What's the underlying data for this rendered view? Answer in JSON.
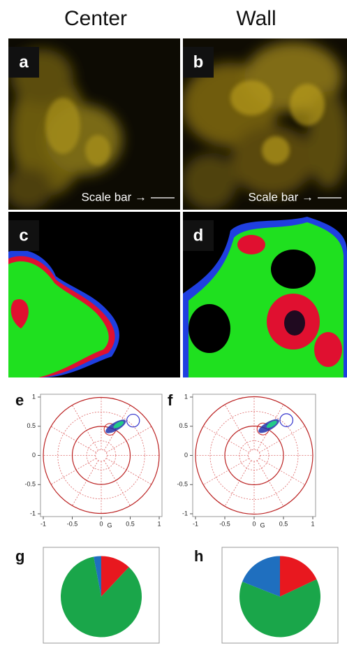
{
  "columns": [
    "Center",
    "Wall"
  ],
  "panels": [
    {
      "label": "a",
      "scale_text": "Scale bar →"
    },
    {
      "label": "b",
      "scale_text": "Scale bar →"
    },
    {
      "label": "c"
    },
    {
      "label": "d"
    }
  ],
  "chart_data": [
    {
      "type": "phasor",
      "label": "e",
      "xlabel": "G",
      "xlim": [
        -1,
        1
      ],
      "ylim": [
        -1,
        1
      ],
      "xticks": [
        -1,
        -0.5,
        0,
        0.5,
        1
      ],
      "yticks": [
        1,
        0.5,
        0,
        -0.5,
        -1
      ]
    },
    {
      "type": "phasor",
      "label": "f",
      "xlabel": "G",
      "xlim": [
        -1,
        1
      ],
      "ylim": [
        -1,
        1
      ],
      "xticks": [
        -1,
        -0.5,
        0,
        0.5,
        1
      ],
      "yticks": [
        1,
        0.5,
        0,
        -0.5,
        -1
      ]
    },
    {
      "type": "pie",
      "label": "g",
      "values": [
        12,
        85,
        3
      ],
      "colors": [
        "#e8181f",
        "#1aa64a",
        "#1f6fbf"
      ]
    },
    {
      "type": "pie",
      "label": "h",
      "values": [
        18,
        63,
        19
      ],
      "colors": [
        "#e8181f",
        "#1aa64a",
        "#1f6fbf"
      ]
    }
  ]
}
